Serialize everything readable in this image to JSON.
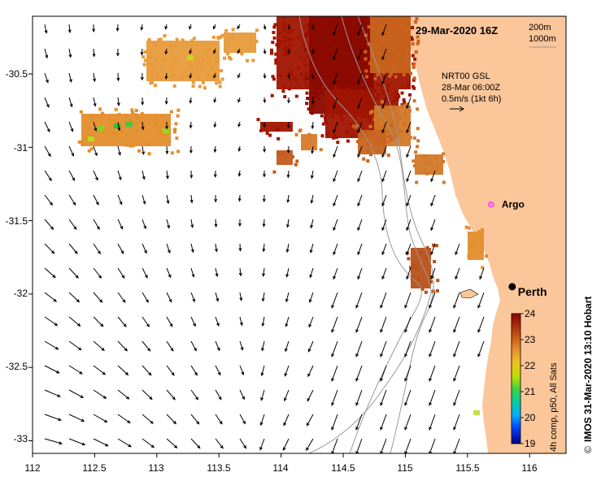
{
  "title": "29-Mar-2020 16Z",
  "contour_legend": {
    "line1": "200m",
    "line2": "1000m"
  },
  "current_info": {
    "line1": "NRT00 GSL",
    "line2": "28-Mar 06:00Z",
    "line3": "0.5m/s (1kt 6h)"
  },
  "credit": "IMOS 31-Mar-2020 13:10 Hobart",
  "copyright_symbol": "©",
  "colorbar": {
    "label": "4h comp, p50, All Sats",
    "min": 19,
    "max": 24,
    "ticks": [
      "19",
      "20",
      "21",
      "22",
      "23",
      "24"
    ]
  },
  "axes": {
    "lon_ticks": [
      "112",
      "112.5",
      "113",
      "113.5",
      "114",
      "114.5",
      "115",
      "115.5",
      "116"
    ],
    "lat_ticks": [
      "-30.5",
      "-31",
      "-31.5",
      "-32",
      "-32.5",
      "-33"
    ]
  },
  "places": {
    "perth": {
      "label": "Perth",
      "lon": 115.86,
      "lat": -31.95
    },
    "argo": {
      "label": "Argo",
      "lon": 115.69,
      "lat": -31.39
    }
  },
  "colors": {
    "land": "#fbc69a",
    "arrow": "#000000",
    "contour": "#9a9a9a",
    "perth_marker": "#000000",
    "argo_marker": "#ff33ff"
  }
}
